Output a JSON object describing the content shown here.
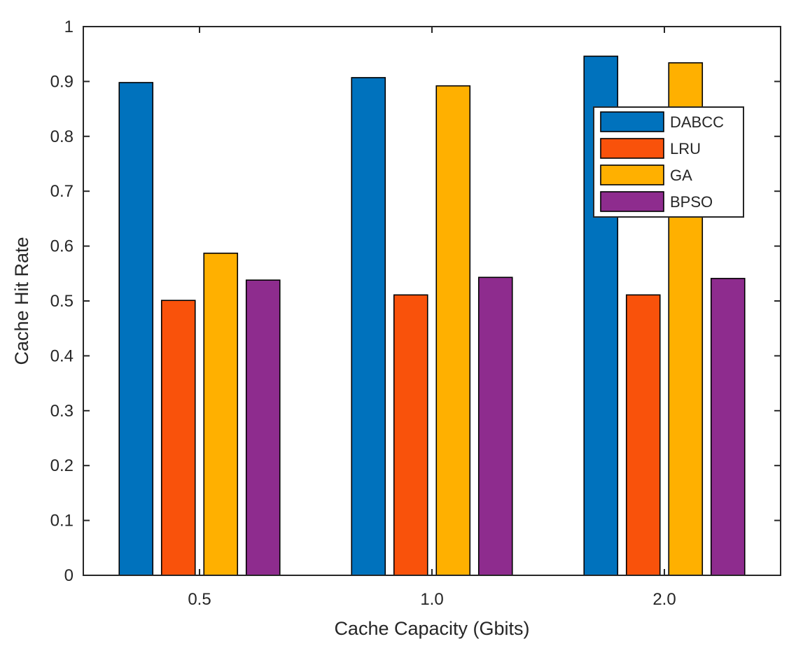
{
  "chart_data": {
    "type": "bar",
    "title": "",
    "xlabel": "Cache Capacity (Gbits)",
    "ylabel": "Cache Hit Rate",
    "categories": [
      "0.5",
      "1.0",
      "2.0"
    ],
    "ylim": [
      0,
      1
    ],
    "yticks": [
      "0",
      "0.1",
      "0.2",
      "0.3",
      "0.4",
      "0.5",
      "0.6",
      "0.7",
      "0.8",
      "0.9",
      "1"
    ],
    "grid": false,
    "legend_position": "top-right",
    "series": [
      {
        "name": "DABCC",
        "color": "#0072BD",
        "values": [
          0.898,
          0.907,
          0.946
        ]
      },
      {
        "name": "LRU",
        "color": "#F9520B",
        "values": [
          0.501,
          0.511,
          0.511
        ]
      },
      {
        "name": "GA",
        "color": "#FFB000",
        "values": [
          0.587,
          0.892,
          0.934
        ]
      },
      {
        "name": "BPSO",
        "color": "#8E2C8E",
        "values": [
          0.538,
          0.543,
          0.541
        ]
      }
    ]
  }
}
